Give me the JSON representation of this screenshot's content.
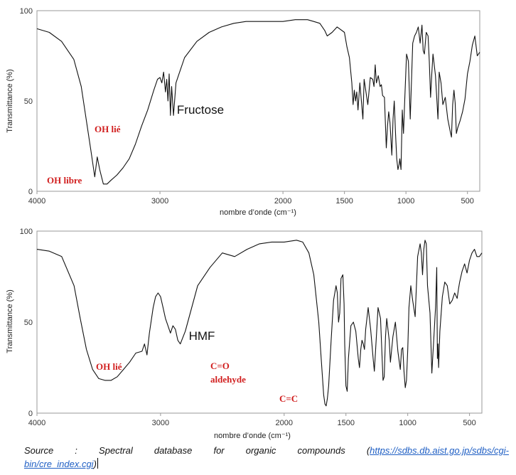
{
  "chart_data": [
    {
      "type": "line",
      "name": "Fructose",
      "xlabel": "nombre d’onde (cm⁻¹)",
      "ylabel": "Transmittance (%)",
      "xlim": [
        4000,
        400
      ],
      "ylim": [
        0,
        100
      ],
      "xticks": [
        4000,
        3000,
        2000,
        1500,
        1000,
        500
      ],
      "yticks": [
        0,
        50,
        100
      ],
      "grid": false,
      "annotations": [
        {
          "text": "OH lié",
          "x": 3080,
          "y": 33
        },
        {
          "text": "OH libre",
          "x": 3700,
          "y": 5
        }
      ],
      "series": [
        {
          "x": [
            4000,
            3900,
            3800,
            3700,
            3640,
            3600,
            3560,
            3530,
            3510,
            3490,
            3460,
            3430,
            3400,
            3350,
            3300,
            3250,
            3200,
            3150,
            3100,
            3050,
            3020,
            3000,
            2985,
            2970,
            2955,
            2945,
            2935,
            2925,
            2915,
            2905,
            2890,
            2870,
            2850,
            2800,
            2700,
            2600,
            2500,
            2400,
            2300,
            2200,
            2100,
            2000,
            1900,
            1800,
            1750,
            1700,
            1660,
            1640,
            1620,
            1600,
            1560,
            1500,
            1480,
            1460,
            1440,
            1430,
            1420,
            1410,
            1400,
            1390,
            1375,
            1360,
            1350,
            1340,
            1325,
            1310,
            1290,
            1270,
            1260,
            1250,
            1240,
            1225,
            1210,
            1200,
            1190,
            1175,
            1160,
            1150,
            1140,
            1130,
            1115,
            1105,
            1095,
            1085,
            1075,
            1065,
            1055,
            1050,
            1040,
            1030,
            1020,
            1010,
            995,
            980,
            965,
            945,
            930,
            915,
            900,
            885,
            870,
            860,
            850,
            835,
            820,
            810,
            800,
            790,
            780,
            760,
            740,
            730,
            715,
            700,
            680,
            660,
            640,
            630,
            620,
            610,
            600,
            590,
            580,
            560,
            540,
            520,
            500,
            480,
            460,
            440,
            420,
            400
          ],
          "y": [
            90,
            88,
            83,
            73,
            58,
            40,
            22,
            8,
            19,
            12,
            4,
            4,
            6,
            9,
            13,
            18,
            26,
            36,
            45,
            56,
            62,
            63,
            60,
            66,
            55,
            62,
            50,
            65,
            42,
            58,
            42,
            60,
            64,
            74,
            83,
            88,
            91,
            93,
            94,
            94,
            94,
            94,
            95,
            95,
            94,
            93,
            89,
            86,
            87,
            88,
            91,
            88,
            80,
            74,
            60,
            48,
            56,
            50,
            55,
            45,
            60,
            48,
            40,
            62,
            55,
            48,
            63,
            62,
            58,
            70,
            60,
            64,
            58,
            59,
            53,
            52,
            24,
            36,
            44,
            38,
            20,
            40,
            50,
            32,
            18,
            12,
            15,
            18,
            12,
            45,
            32,
            50,
            76,
            72,
            40,
            82,
            86,
            88,
            91,
            82,
            92,
            78,
            76,
            88,
            86,
            72,
            52,
            65,
            76,
            64,
            40,
            66,
            60,
            48,
            52,
            40,
            33,
            30,
            48,
            56,
            49,
            32,
            35,
            39,
            44,
            51,
            65,
            72,
            81,
            86,
            75,
            77
          ]
        }
      ]
    },
    {
      "type": "line",
      "name": "HMF",
      "xlabel": "nombre d’onde (cm⁻¹)",
      "ylabel": "Transmittance (%)",
      "xlim": [
        4000,
        400
      ],
      "ylim": [
        0,
        100
      ],
      "xticks": [
        4000,
        3000,
        2000,
        1500,
        1000,
        500
      ],
      "yticks": [
        0,
        50,
        100
      ],
      "grid": false,
      "annotations": [
        {
          "text": "OH lié",
          "x": 3080,
          "y": 25
        },
        {
          "text": "C=O",
          "x": 1860,
          "y": 25
        },
        {
          "text": "aldehyde",
          "x": 1860,
          "y": 17
        },
        {
          "text": "C=C",
          "x": 1580,
          "y": 7
        }
      ],
      "series": [
        {
          "x": [
            4000,
            3900,
            3800,
            3700,
            3650,
            3600,
            3550,
            3500,
            3450,
            3400,
            3350,
            3300,
            3250,
            3200,
            3150,
            3130,
            3110,
            3090,
            3060,
            3040,
            3020,
            3000,
            2980,
            2960,
            2940,
            2920,
            2900,
            2880,
            2860,
            2840,
            2800,
            2700,
            2600,
            2500,
            2400,
            2300,
            2200,
            2100,
            2000,
            1900,
            1850,
            1800,
            1760,
            1720,
            1700,
            1680,
            1670,
            1660,
            1650,
            1640,
            1620,
            1600,
            1580,
            1570,
            1560,
            1550,
            1540,
            1525,
            1515,
            1510,
            1500,
            1490,
            1480,
            1460,
            1440,
            1420,
            1400,
            1390,
            1380,
            1370,
            1360,
            1350,
            1340,
            1320,
            1300,
            1280,
            1270,
            1260,
            1240,
            1220,
            1200,
            1190,
            1180,
            1170,
            1150,
            1140,
            1120,
            1100,
            1080,
            1060,
            1050,
            1040,
            1030,
            1020,
            1010,
            1000,
            990,
            975,
            960,
            940,
            920,
            900,
            890,
            880,
            870,
            860,
            850,
            840,
            820,
            805,
            790,
            775,
            765,
            760,
            755,
            750,
            740,
            720,
            700,
            680,
            660,
            640,
            620,
            600,
            590,
            580,
            560,
            540,
            520,
            500,
            480,
            460,
            440,
            420,
            400
          ],
          "y": [
            90,
            89,
            86,
            70,
            52,
            35,
            24,
            19,
            18,
            18,
            20,
            24,
            28,
            33,
            34,
            38,
            32,
            44,
            58,
            64,
            66,
            64,
            58,
            52,
            48,
            44,
            48,
            46,
            40,
            38,
            45,
            70,
            80,
            88,
            86,
            90,
            93,
            94,
            94,
            95,
            94,
            88,
            76,
            50,
            30,
            10,
            5,
            4,
            8,
            15,
            40,
            62,
            70,
            66,
            50,
            55,
            74,
            76,
            60,
            38,
            15,
            12,
            30,
            48,
            50,
            45,
            30,
            25,
            35,
            40,
            38,
            35,
            46,
            58,
            46,
            30,
            23,
            35,
            58,
            52,
            18,
            20,
            42,
            52,
            40,
            28,
            42,
            50,
            34,
            24,
            35,
            36,
            23,
            14,
            18,
            35,
            58,
            70,
            62,
            53,
            86,
            93,
            88,
            76,
            90,
            95,
            93,
            70,
            55,
            22,
            40,
            58,
            80,
            30,
            38,
            25,
            45,
            64,
            72,
            70,
            60,
            62,
            66,
            63,
            68,
            72,
            78,
            82,
            77,
            84,
            88,
            90,
            86,
            86,
            88
          ]
        }
      ]
    }
  ],
  "source": {
    "prefix": "Source :  Spectral  database  for  organic  compounds  (",
    "link_line1": "https://sdbs.db.aist.go.jp/sdbs/cgi-",
    "link_line2": "bin/cre_index.cgi",
    "suffix": ")"
  }
}
